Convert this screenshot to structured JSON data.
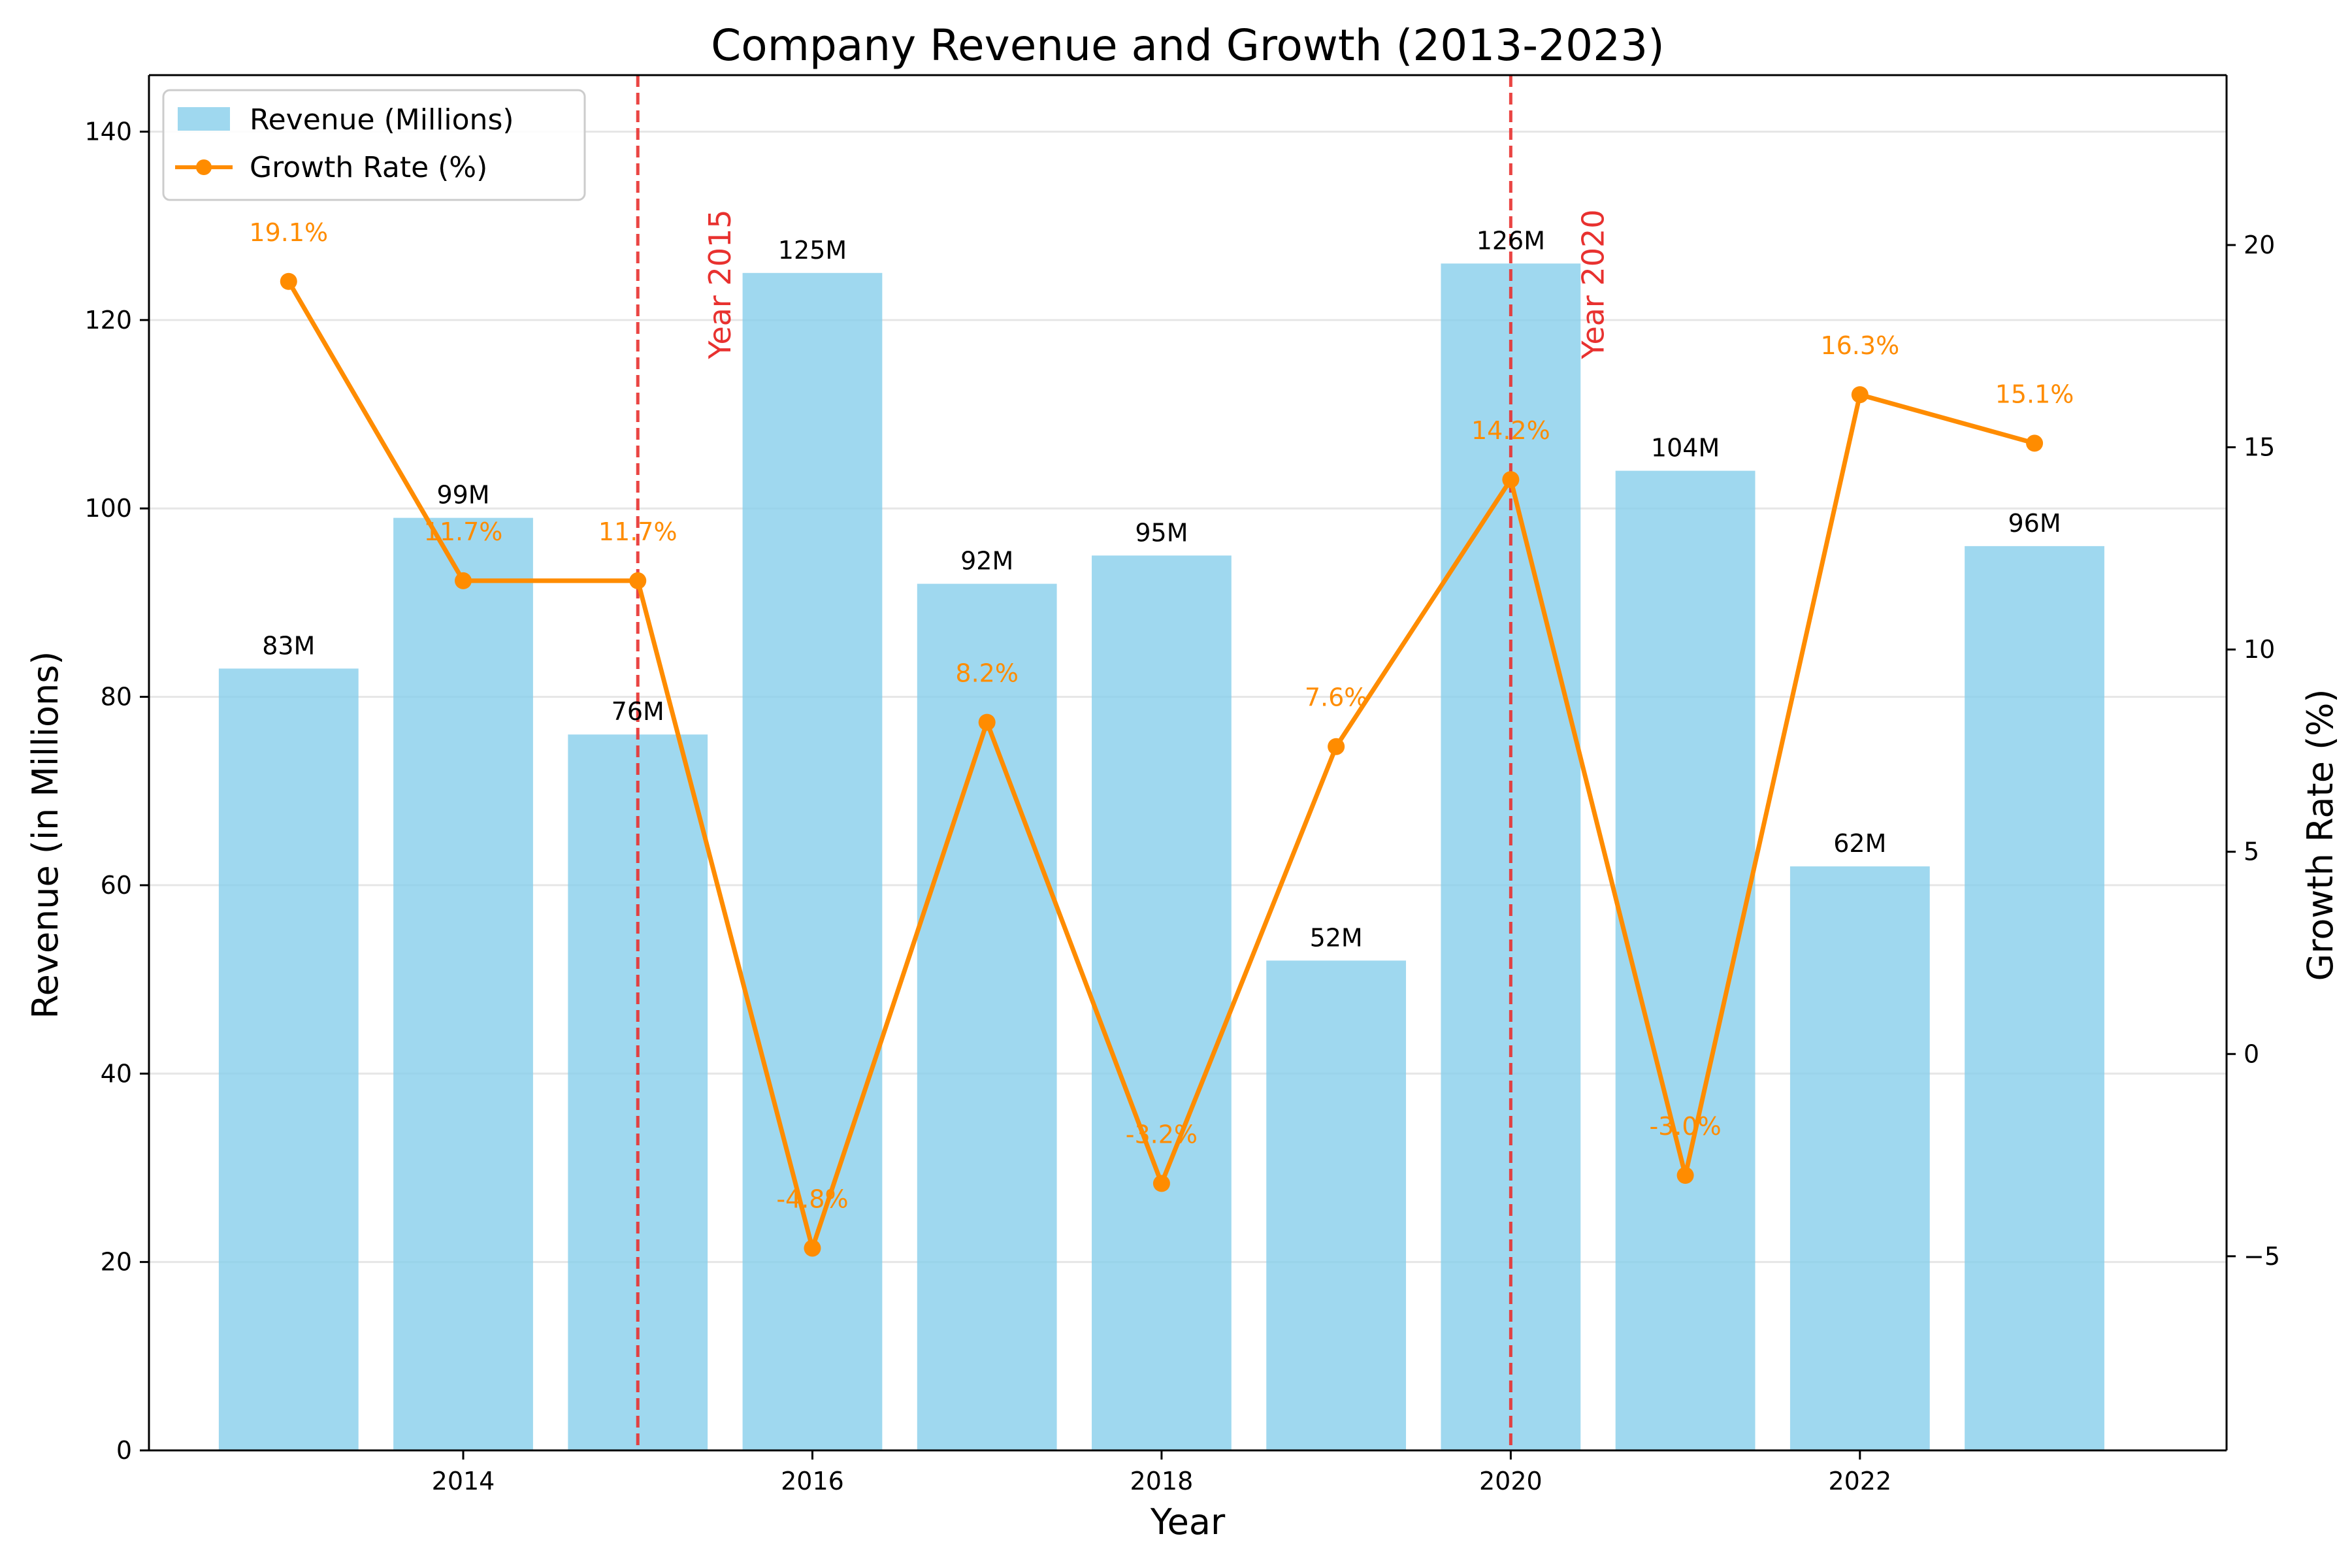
{
  "chart_data": {
    "type": "bar",
    "title": "Company Revenue and Growth (2013-2023)",
    "xlabel": "Year",
    "ylabel": "Revenue (in Millions)",
    "y2label": "Growth Rate (%)",
    "x": [
      2013,
      2014,
      2015,
      2016,
      2017,
      2018,
      2019,
      2020,
      2021,
      2022,
      2023
    ],
    "xlim": [
      2012.2,
      2024.1
    ],
    "xticks": [
      "2014",
      "2016",
      "2018",
      "2020",
      "2022"
    ],
    "ylim": [
      0,
      146
    ],
    "yticks": [
      "0",
      "20",
      "40",
      "60",
      "80",
      "100",
      "120",
      "140"
    ],
    "y2lim": [
      -9.8,
      24.2
    ],
    "y2ticks": [
      "−5",
      "0",
      "5",
      "10",
      "15",
      "20"
    ],
    "grid": "y",
    "legend_position": "top-left",
    "colors": {
      "bar": "#87ceeb",
      "line": "#ff8c00",
      "vline": "#e8312f",
      "grid": "#e6e6e6"
    },
    "series": [
      {
        "name": "Revenue (Millions)",
        "type": "bar",
        "axis": "left",
        "values": [
          83,
          99,
          76,
          125,
          92,
          95,
          52,
          126,
          104,
          62,
          96
        ],
        "labels": [
          "83M",
          "99M",
          "76M",
          "125M",
          "92M",
          "95M",
          "52M",
          "126M",
          "104M",
          "62M",
          "96M"
        ]
      },
      {
        "name": "Growth Rate (%)",
        "type": "line",
        "axis": "right",
        "values": [
          19.1,
          11.7,
          11.7,
          -4.8,
          8.2,
          -3.2,
          7.6,
          14.2,
          -3.0,
          16.3,
          15.1
        ],
        "labels": [
          "19.1%",
          "11.7%",
          "11.7%",
          "-4.8%",
          "8.2%",
          "-3.2%",
          "7.6%",
          "14.2%",
          "-3.0%",
          "16.3%",
          "15.1%"
        ]
      }
    ],
    "vlines": [
      {
        "x": 2015,
        "label": "Year 2015"
      },
      {
        "x": 2020,
        "label": "Year 2020"
      }
    ]
  }
}
